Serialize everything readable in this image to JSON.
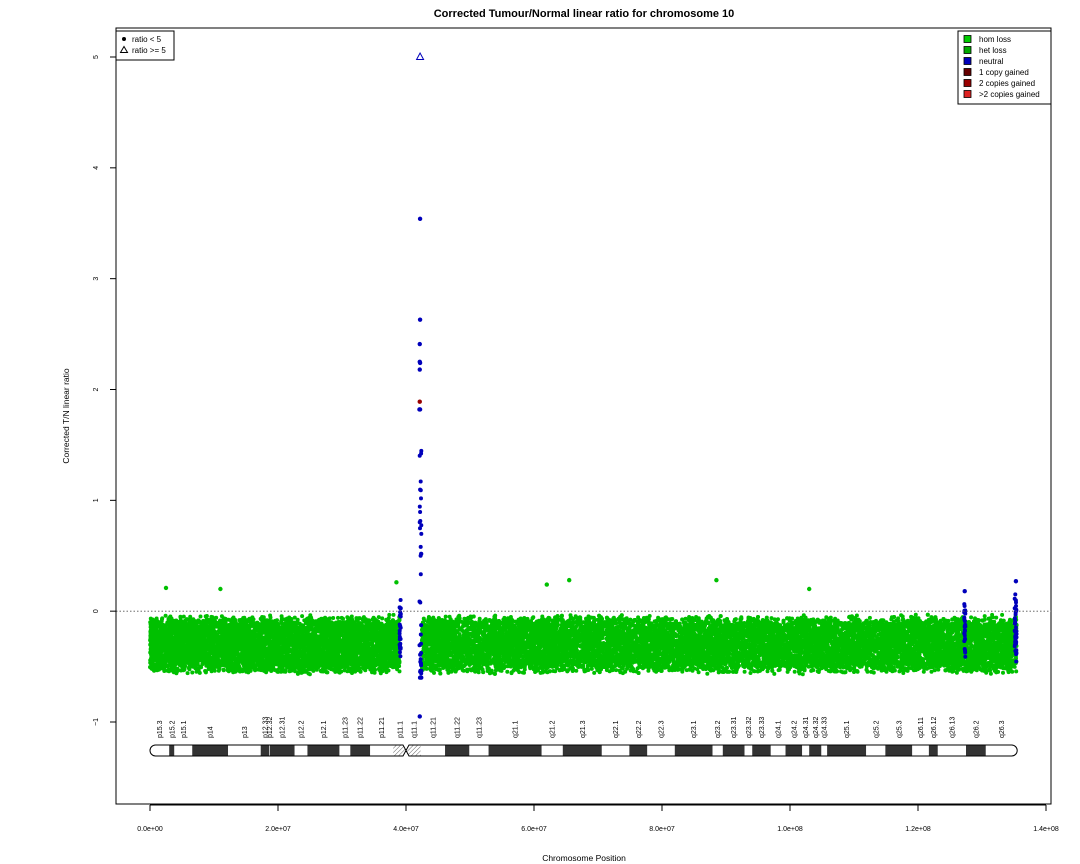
{
  "chart_data": {
    "type": "scatter",
    "title": "Corrected Tumour/Normal linear ratio for chromosome  10",
    "xlabel": "Chromosome Position",
    "ylabel": "Corrected T/N linear ratio",
    "xlim": [
      -5000000,
      140000000
    ],
    "ylim": [
      -1.8,
      5.3
    ],
    "x_ticks": [
      0,
      20000000,
      40000000,
      60000000,
      80000000,
      100000000,
      120000000,
      140000000
    ],
    "x_tick_labels": [
      "0.0e+00",
      "2.0e+07",
      "4.0e+07",
      "6.0e+07",
      "8.0e+07",
      "1.0e+08",
      "1.2e+08",
      "1.4e+08"
    ],
    "y_ticks": [
      -1,
      0,
      1,
      2,
      3,
      4,
      5
    ],
    "y_tick_labels": [
      "−1",
      "0",
      "1",
      "2",
      "3",
      "4",
      "5"
    ],
    "reference_line": 0,
    "grid": false,
    "shape_legend": {
      "placement": "top-left",
      "entries": [
        {
          "label": "ratio < 5",
          "shape": "dot"
        },
        {
          "label": "ratio >= 5",
          "shape": "triangle"
        }
      ]
    },
    "color_legend": {
      "placement": "top-right",
      "entries": [
        {
          "label": "hom loss",
          "color": "#00cc00"
        },
        {
          "label": "het loss",
          "color": "#00aa00"
        },
        {
          "label": "neutral",
          "color": "#0000bb"
        },
        {
          "label": "1 copy gained",
          "color": "#660000"
        },
        {
          "label": "2 copies gained",
          "color": "#990000"
        },
        {
          "label": ">2 copies gained",
          "color": "#dd2222"
        }
      ]
    },
    "series": [
      {
        "name": "het loss",
        "color": "#00c000",
        "x_range": [
          0,
          39000000
        ],
        "y_center": -0.3,
        "y_spread": 0.27,
        "note_type": "dense"
      },
      {
        "name": "het loss",
        "color": "#00c000",
        "x_range": [
          42500000,
          135400000
        ],
        "y_center": -0.3,
        "y_spread": 0.27,
        "note_type": "dense"
      },
      {
        "name": "neutral",
        "color": "#0000bb",
        "x_range": [
          39000000,
          39200000
        ],
        "y_center": -0.15,
        "y_spread": 0.3,
        "note_type": "dense"
      },
      {
        "name": "neutral",
        "color": "#0000bb",
        "x_range": [
          42100000,
          42400000
        ],
        "y_center": 0.3,
        "y_spread": 1.2,
        "note_type": "dense"
      },
      {
        "name": "neutral",
        "color": "#0000bb",
        "x_range": [
          127200000,
          127400000
        ],
        "y_center": -0.15,
        "y_spread": 0.3,
        "note_type": "dense"
      },
      {
        "name": "neutral",
        "color": "#0000bb",
        "x_range": [
          135100000,
          135400000
        ],
        "y_center": -0.15,
        "y_spread": 0.35,
        "note_type": "dense"
      }
    ],
    "highlight_points": [
      {
        "x": 42200000,
        "y": 5.0,
        "shape": "triangle",
        "color": "#0000bb"
      },
      {
        "x": 42200000,
        "y": 3.54,
        "shape": "dot",
        "color": "#0000bb"
      },
      {
        "x": 42200000,
        "y": 2.63,
        "shape": "dot",
        "color": "#0000bb"
      },
      {
        "x": 42150000,
        "y": 2.41,
        "shape": "dot",
        "color": "#0000bb"
      },
      {
        "x": 42150000,
        "y": 2.25,
        "shape": "dot",
        "color": "#0000bb"
      },
      {
        "x": 42200000,
        "y": 2.24,
        "shape": "dot",
        "color": "#0000bb"
      },
      {
        "x": 42150000,
        "y": 2.18,
        "shape": "dot",
        "color": "#0000bb"
      },
      {
        "x": 42150000,
        "y": 1.89,
        "shape": "dot",
        "color": "#990000"
      },
      {
        "x": 42100000,
        "y": 1.82,
        "shape": "dot",
        "color": "#0000bb"
      },
      {
        "x": 42200000,
        "y": 1.82,
        "shape": "dot",
        "color": "#0000bb"
      },
      {
        "x": 42150000,
        "y": -0.95,
        "shape": "dot",
        "color": "#0000bb"
      },
      {
        "x": 11000000,
        "y": 0.2,
        "shape": "dot",
        "color": "#00c000"
      },
      {
        "x": 2500000,
        "y": 0.21,
        "shape": "dot",
        "color": "#00c000"
      },
      {
        "x": 38500000,
        "y": 0.26,
        "shape": "dot",
        "color": "#00c000"
      },
      {
        "x": 65500000,
        "y": 0.28,
        "shape": "dot",
        "color": "#00c000"
      },
      {
        "x": 62000000,
        "y": 0.24,
        "shape": "dot",
        "color": "#00c000"
      },
      {
        "x": 88500000,
        "y": 0.28,
        "shape": "dot",
        "color": "#00c000"
      },
      {
        "x": 103000000,
        "y": 0.2,
        "shape": "dot",
        "color": "#00c000"
      },
      {
        "x": 135300000,
        "y": 0.27,
        "shape": "dot",
        "color": "#0000bb"
      },
      {
        "x": 127300000,
        "y": 0.18,
        "shape": "dot",
        "color": "#0000bb"
      }
    ],
    "ideogram": {
      "centromere": 40000000,
      "length": 135500000,
      "bands": [
        {
          "name": "p15.3",
          "start": 0,
          "end": 3000000,
          "stain": "gneg"
        },
        {
          "name": "p15.2",
          "start": 3000000,
          "end": 3800000,
          "stain": "gpos"
        },
        {
          "name": "p15.1",
          "start": 3800000,
          "end": 6600000,
          "stain": "gneg"
        },
        {
          "name": "p14",
          "start": 6600000,
          "end": 12200000,
          "stain": "gpos"
        },
        {
          "name": "p13",
          "start": 12200000,
          "end": 17300000,
          "stain": "gneg"
        },
        {
          "name": "p12.33",
          "start": 17300000,
          "end": 18600000,
          "stain": "gpos"
        },
        {
          "name": "p12.32",
          "start": 18600000,
          "end": 18700000,
          "stain": "gneg"
        },
        {
          "name": "p12.31",
          "start": 18700000,
          "end": 22600000,
          "stain": "gpos"
        },
        {
          "name": "p12.2",
          "start": 22600000,
          "end": 24600000,
          "stain": "gneg"
        },
        {
          "name": "p12.1",
          "start": 24600000,
          "end": 29600000,
          "stain": "gpos"
        },
        {
          "name": "p11.23",
          "start": 29600000,
          "end": 31300000,
          "stain": "gneg"
        },
        {
          "name": "p11.22",
          "start": 31300000,
          "end": 34400000,
          "stain": "gpos"
        },
        {
          "name": "p11.21",
          "start": 34400000,
          "end": 38000000,
          "stain": "gneg"
        },
        {
          "name": "p11.1",
          "start": 38000000,
          "end": 40200000,
          "stain": "acen"
        },
        {
          "name": "q11.1",
          "start": 40200000,
          "end": 42300000,
          "stain": "acen"
        },
        {
          "name": "q11.21",
          "start": 42300000,
          "end": 46100000,
          "stain": "gneg"
        },
        {
          "name": "q11.22",
          "start": 46100000,
          "end": 49900000,
          "stain": "gpos"
        },
        {
          "name": "q11.23",
          "start": 49900000,
          "end": 52900000,
          "stain": "gneg"
        },
        {
          "name": "q21.1",
          "start": 52900000,
          "end": 61200000,
          "stain": "gpos"
        },
        {
          "name": "q21.2",
          "start": 61200000,
          "end": 64500000,
          "stain": "gneg"
        },
        {
          "name": "q21.3",
          "start": 64500000,
          "end": 70600000,
          "stain": "gpos"
        },
        {
          "name": "q22.1",
          "start": 70600000,
          "end": 74900000,
          "stain": "gneg"
        },
        {
          "name": "q22.2",
          "start": 74900000,
          "end": 77700000,
          "stain": "gpos"
        },
        {
          "name": "q22.3",
          "start": 77700000,
          "end": 82000000,
          "stain": "gneg"
        },
        {
          "name": "q23.1",
          "start": 82000000,
          "end": 87900000,
          "stain": "gpos"
        },
        {
          "name": "q23.2",
          "start": 87900000,
          "end": 89500000,
          "stain": "gneg"
        },
        {
          "name": "q23.31",
          "start": 89500000,
          "end": 92900000,
          "stain": "gpos"
        },
        {
          "name": "q23.32",
          "start": 92900000,
          "end": 94100000,
          "stain": "gneg"
        },
        {
          "name": "q23.33",
          "start": 94100000,
          "end": 97000000,
          "stain": "gpos"
        },
        {
          "name": "q24.1",
          "start": 97000000,
          "end": 99300000,
          "stain": "gneg"
        },
        {
          "name": "q24.2",
          "start": 99300000,
          "end": 101900000,
          "stain": "gpos"
        },
        {
          "name": "q24.31",
          "start": 101900000,
          "end": 103000000,
          "stain": "gneg"
        },
        {
          "name": "q24.32",
          "start": 103000000,
          "end": 104900000,
          "stain": "gpos"
        },
        {
          "name": "q24.33",
          "start": 104900000,
          "end": 105800000,
          "stain": "gneg"
        },
        {
          "name": "q25.1",
          "start": 105800000,
          "end": 111900000,
          "stain": "gpos"
        },
        {
          "name": "q25.2",
          "start": 111900000,
          "end": 114900000,
          "stain": "gneg"
        },
        {
          "name": "q25.3",
          "start": 114900000,
          "end": 119100000,
          "stain": "gpos"
        },
        {
          "name": "q26.11",
          "start": 119100000,
          "end": 121700000,
          "stain": "gneg"
        },
        {
          "name": "q26.12",
          "start": 121700000,
          "end": 123100000,
          "stain": "gpos"
        },
        {
          "name": "q26.13",
          "start": 123100000,
          "end": 127500000,
          "stain": "gneg"
        },
        {
          "name": "q26.2",
          "start": 127500000,
          "end": 130600000,
          "stain": "gpos"
        },
        {
          "name": "q26.3",
          "start": 130600000,
          "end": 135500000,
          "stain": "gneg"
        }
      ]
    }
  }
}
